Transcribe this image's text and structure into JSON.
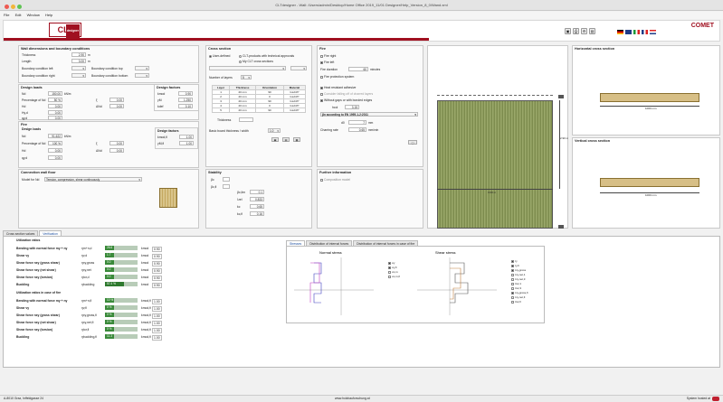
{
  "window": {
    "title": "CLTdesigner - Wall: /Users/admin/Desktop/Home Office 2019_11/01 Designer/Help_Version_8_0/Wand.xml"
  },
  "menu": [
    "File",
    "Edit",
    "Window",
    "Help"
  ],
  "logo": {
    "text": "CLT",
    "badge": "designer"
  },
  "brand": {
    "name": "COMET",
    "accent": "#a01020"
  },
  "wall": {
    "title": "Wall dimensions and boundary conditions",
    "thickness_label": "Thickness",
    "thickness": "2.90",
    "thickness_unit": "m",
    "length_label": "Length",
    "length": "3.00",
    "length_unit": "m",
    "bc_left_label": "Boundary condition left",
    "bc_top_label": "Boundary condition top",
    "bc_right_label": "Boundary condition right",
    "bc_bottom_label": "Boundary condition bottom"
  },
  "design_loads": {
    "title": "Design loads",
    "rows": [
      {
        "label": "Nd",
        "value": "150.00",
        "unit": "kN/m"
      },
      {
        "label": "Percentage of Nd",
        "value": "50 %",
        "label2": "ξ",
        "value2": "0.00"
      },
      {
        "label": "Hd",
        "value": "0.00",
        "label2": "ΔNd",
        "value2": "0.00"
      },
      {
        "label": "Hy,d",
        "value": "0.00"
      },
      {
        "label": "qy,d",
        "value": "0.00"
      }
    ]
  },
  "design_factors": {
    "title": "Design factors",
    "rows": [
      {
        "label": "kmod",
        "value": "0.90"
      },
      {
        "label": "γM",
        "value": "1.250"
      },
      {
        "label": "kdef",
        "value": "0.10"
      }
    ]
  },
  "fire": {
    "title": "Fire",
    "loads_title": "Design loads",
    "rows": [
      {
        "label": "Nd",
        "value": "91.622",
        "unit": "kN/m"
      },
      {
        "label": "Percentage of Nd",
        "value": "100 %",
        "label2": "ξ",
        "value2": "0.00"
      },
      {
        "label": "Hd",
        "value": "0.00",
        "label2": "ΔNd",
        "value2": "0.00"
      },
      {
        "label": "qy,d",
        "value": "0.00"
      }
    ],
    "factors_title": "Design factors",
    "factors": [
      {
        "label": "kmod,fi",
        "value": "1.00"
      },
      {
        "label": "γM,fi",
        "value": "1.00"
      }
    ]
  },
  "connection": {
    "title": "Connection wall floor",
    "label": "Model for Nd",
    "value": "Tension, compression, shear continuously"
  },
  "cross_section": {
    "title": "Cross section",
    "radio1": "User-defined",
    "radio2": "CLT-products with technical approvals",
    "radio3": "My CLT cross sections",
    "layers_label": "Number of layers",
    "layers": "5",
    "columns": [
      "Layer",
      "Thickness",
      "Orientation",
      "Material"
    ],
    "rows": [
      [
        "1",
        "20 mm",
        "90",
        "GL24h*"
      ],
      [
        "2",
        "20 mm",
        "0",
        "GL24h*"
      ],
      [
        "3",
        "20 mm",
        "90",
        "GL24h*"
      ],
      [
        "4",
        "20 mm",
        "0",
        "GL24h*"
      ],
      [
        "5",
        "20 mm",
        "90",
        "GL24h*"
      ]
    ],
    "thickness_label": "Thickness",
    "base_label": "Basic board thickness / width",
    "base_value": "1.0"
  },
  "stability": {
    "title": "Stability",
    "rows": [
      {
        "label": "βc,lim",
        "value": "0.1"
      },
      {
        "label": "λrel",
        "value": "0.833"
      },
      {
        "label": "kc",
        "value": "0.65"
      },
      {
        "label": "kc,fi",
        "value": "0.16"
      }
    ]
  },
  "further": {
    "title": "Further information",
    "item": "Composition model"
  },
  "fire_panel": {
    "title": "Fire",
    "fire_right": "Fire right",
    "fire_left": "Fire left",
    "duration_label": "Fire duration",
    "duration": "60",
    "duration_unit": "minutes",
    "protection": "Fire protection system",
    "adhesive": "Heat resistant adhesive",
    "consider": "Consider falling off of charred layers",
    "gaps": "Without gaps or with bonded edges",
    "hcol_label": "hcol",
    "hcol": "3.15",
    "norm": "βn according to EN 1995-1-2:2011",
    "d0_label": "d0",
    "d0": "7",
    "d0_unit": "mm",
    "charring_label": "Charring rate",
    "charring": "0.65",
    "charring_unit": "mm/min"
  },
  "views": {
    "horizontal": "Horizontal cross section",
    "vertical": "Vertical cross section",
    "dim_w": "3.00 m",
    "dim_h": "2.90 m",
    "dim_small": "1000 mm"
  },
  "tabs": [
    "Cross section values",
    "Verification"
  ],
  "utilization": {
    "title": "Utilization ratios",
    "rows": [
      {
        "label": "Bending with normal force my + ny",
        "sym": "ηm+n,d",
        "value": "26.6 %",
        "kmod": "kmod",
        "k": "0.90",
        "pct": 0.266
      },
      {
        "label": "Shear vy",
        "sym": "ηv,d",
        "value": "1.7 %",
        "kmod": "kmod",
        "k": "0.90",
        "pct": 0.017
      },
      {
        "label": "Shear force nxy (gross shear)",
        "sym": "ηxy,gross",
        "value": "0.0 %",
        "kmod": "kmod",
        "k": "0.90",
        "pct": 0.0
      },
      {
        "label": "Shear force nxy (net shear)",
        "sym": "ηxy,net",
        "value": "0.0 %",
        "kmod": "kmod",
        "k": "0.90",
        "pct": 0.0
      },
      {
        "label": "Shear force nxy (torsion)",
        "sym": "ηtor,d",
        "value": "0.0 %",
        "kmod": "kmod",
        "k": "0.90",
        "pct": 0.0
      },
      {
        "label": "Buckling",
        "sym": "ηbuckling",
        "value": "57.4 %",
        "kmod": "kmod",
        "k": "0.90",
        "pct": 0.574
      }
    ]
  },
  "utilization_fire": {
    "title": "Utilization ratios in case of fire",
    "rows": [
      {
        "label": "Bending with normal force my + ny",
        "sym": "ηm+n,fi",
        "value": "10 %",
        "kmod": "kmod,fi",
        "k": "1.00",
        "pct": 0.1
      },
      {
        "label": "Shear vy",
        "sym": "ηv,fi",
        "value": "0 %",
        "kmod": "kmod,fi",
        "k": "1.00",
        "pct": 0.0
      },
      {
        "label": "Shear force nxy (gross shear)",
        "sym": "ηxy,gross,fi",
        "value": "0 %",
        "kmod": "kmod,fi",
        "k": "1.00",
        "pct": 0.0
      },
      {
        "label": "Shear force nxy (net shear)",
        "sym": "ηxy,net,fi",
        "value": "0 %",
        "kmod": "kmod,fi",
        "k": "1.00",
        "pct": 0.0
      },
      {
        "label": "Shear force nxy (torsion)",
        "sym": "ηtor,fi",
        "value": "0 %",
        "kmod": "kmod,fi",
        "k": "1.00",
        "pct": 0.0
      },
      {
        "label": "Buckling",
        "sym": "ηbuckling,fi",
        "value": "11.3 %",
        "kmod": "kmod,fi",
        "k": "1.00",
        "pct": 0.113
      }
    ]
  },
  "stress_tabs": [
    "Stresses",
    "Distribution of internal forces",
    "Distribution of internal forces in case of fire"
  ],
  "stress_charts": {
    "normal": {
      "title": "Normal stress",
      "legend": [
        "σy",
        "σy,fi",
        "σx,m",
        "σx,m,fi"
      ]
    },
    "shear": {
      "title": "Shear stress",
      "legend": [
        "τy",
        "τy,fi",
        "τxy,gross",
        "τxy,net,1",
        "τxy,net,3",
        "τtor,1",
        "τtor,3",
        "τxy,gross,fi",
        "τxy,net,fi",
        "τtor,fi"
      ]
    }
  },
  "status": {
    "address": "A-8010 Graz, Inffeldgasse 24",
    "url": "www.holzbauforschung.at",
    "hosted": "System hosted at"
  }
}
